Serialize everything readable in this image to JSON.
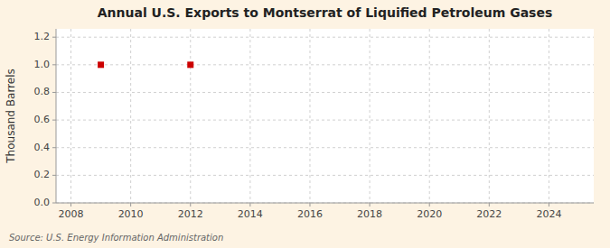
{
  "chart_data": {
    "type": "scatter",
    "title": "Annual U.S. Exports to Montserrat of Liquified Petroleum Gases",
    "ylabel": "Thousand Barrels",
    "annotations": [
      "Source: U.S. Energy Information Administration"
    ],
    "x": [
      2009,
      2012
    ],
    "values": [
      1.0,
      1.0
    ],
    "color": "#cc0000",
    "marker": "square",
    "xlim": [
      2007.5,
      2025.5
    ],
    "ylim": [
      0.0,
      1.26
    ],
    "xticks": [
      2008,
      2010,
      2012,
      2014,
      2016,
      2018,
      2020,
      2022,
      2024
    ],
    "yticks": [
      {
        "value": 0.0,
        "label": "0.0"
      },
      0.2,
      0.4,
      0.6,
      0.8,
      {
        "value": 1.0,
        "label": "1.0"
      },
      1.2
    ],
    "grid": true
  }
}
